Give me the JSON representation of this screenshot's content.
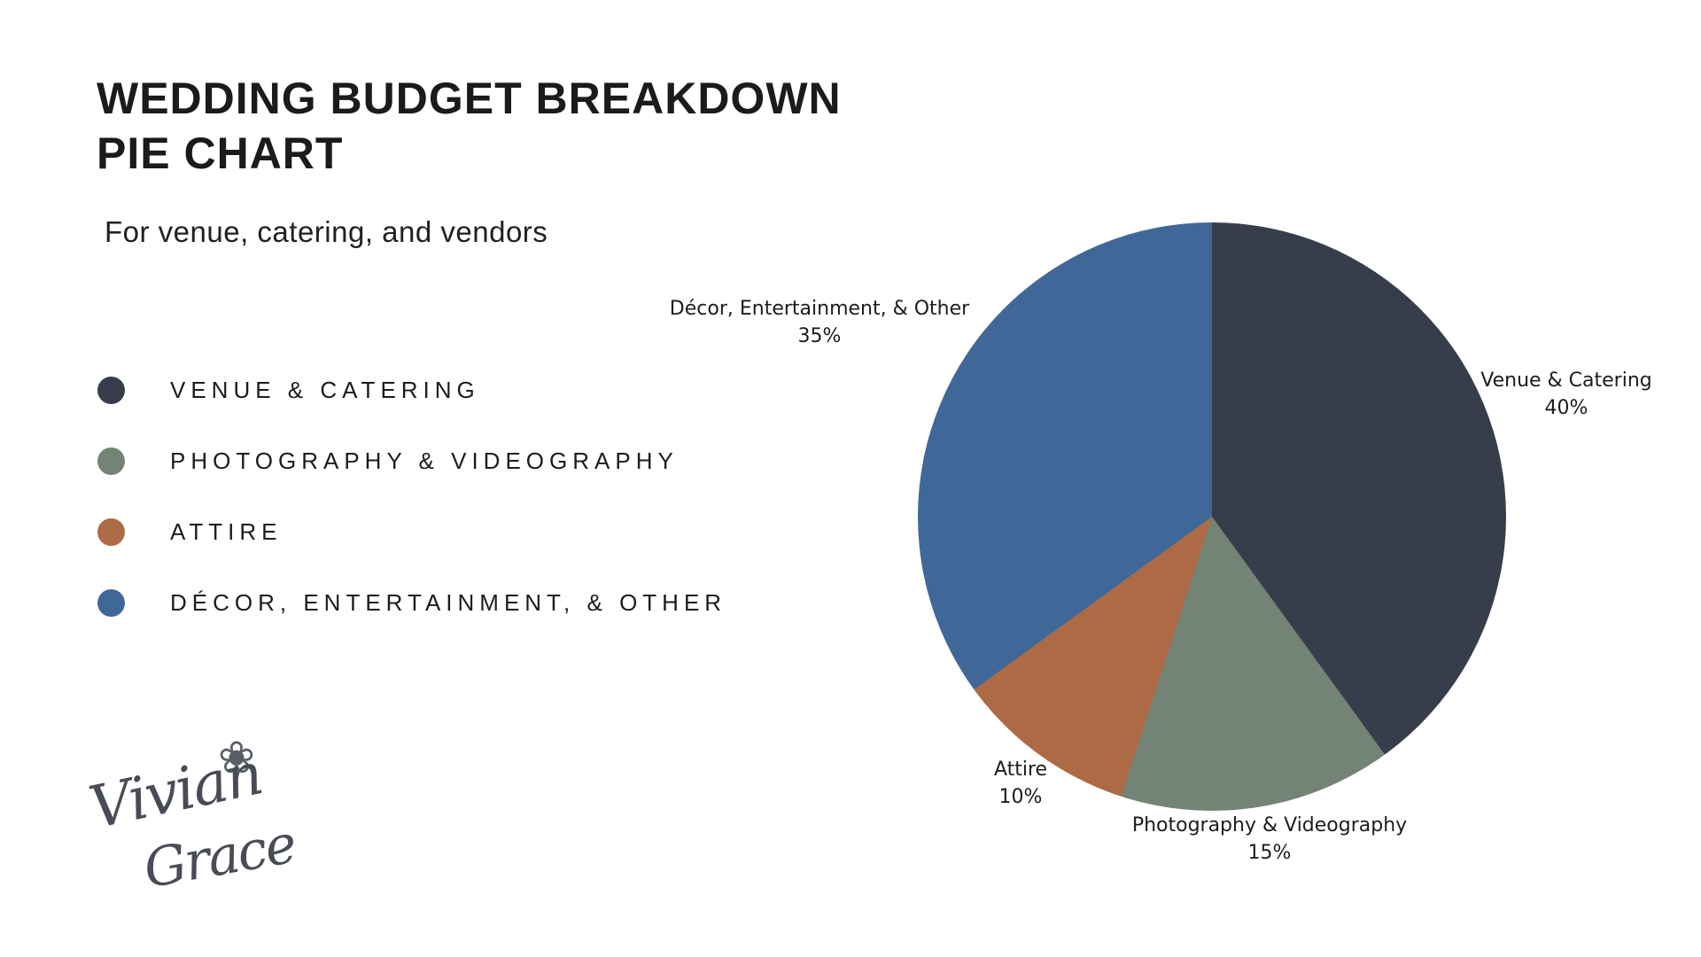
{
  "header": {
    "title_line1": "WEDDING BUDGET BREAKDOWN",
    "title_line2": "PIE CHART",
    "subtitle": "For venue, catering, and vendors"
  },
  "legend": {
    "items": [
      {
        "label": "VENUE & CATERING",
        "color": "#383d4b"
      },
      {
        "label": "PHOTOGRAPHY & VIDEOGRAPHY",
        "color": "#738375"
      },
      {
        "label": "ATTIRE",
        "color": "#ad6b45"
      },
      {
        "label": "DÉCOR, ENTERTAINMENT, & OTHER",
        "color": "#3f6899"
      }
    ]
  },
  "chart_data": {
    "type": "pie",
    "title": "WEDDING BUDGET BREAKDOWN PIE CHART",
    "subtitle": "For venue, catering, and vendors",
    "start_angle_deg": 0,
    "direction": "clockwise",
    "legend_position": "left",
    "slices": [
      {
        "label": "Venue & Catering",
        "value": 40,
        "pct": "40%",
        "color": "#383d4b"
      },
      {
        "label": "Photography & Videography",
        "value": 15,
        "pct": "15%",
        "color": "#738375"
      },
      {
        "label": "Attire",
        "value": 10,
        "pct": "10%",
        "color": "#ad6b45"
      },
      {
        "label": "Décor, Entertainment, & Other",
        "value": 35,
        "pct": "35%",
        "color": "#3f6899"
      }
    ]
  },
  "signature": {
    "flower_icon": "❀",
    "name_line1": "Vivian",
    "name_line2": "Grace"
  }
}
